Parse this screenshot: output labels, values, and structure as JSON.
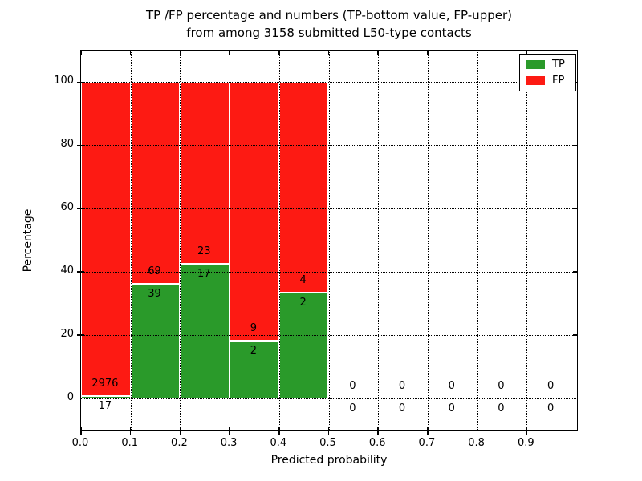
{
  "title": {
    "line1": "TP /FP percentage and numbers (TP-bottom value, FP-upper)",
    "line2": "from among 3158 submitted L50-type contacts"
  },
  "axes": {
    "xlabel": "Predicted probability",
    "ylabel": "Percentage",
    "xlim": [
      0.0,
      1.0
    ],
    "ylim": [
      -10,
      110
    ],
    "xtick_values": [
      0.0,
      0.1,
      0.2,
      0.3,
      0.4,
      0.5,
      0.6,
      0.7,
      0.8,
      0.9
    ],
    "xtick_labels": [
      "0.0",
      "0.1",
      "0.2",
      "0.3",
      "0.4",
      "0.5",
      "0.6",
      "0.7",
      "0.8",
      "0.9"
    ],
    "ytick_values": [
      0,
      20,
      40,
      60,
      80,
      100
    ],
    "ytick_labels": [
      "0",
      "20",
      "40",
      "60",
      "80",
      "100"
    ],
    "grid": "dotted, both directions, drawn over bars"
  },
  "legend": {
    "position": "upper right",
    "items": [
      {
        "label": "TP",
        "color": "#2a9a2a"
      },
      {
        "label": "FP",
        "color": "#fd1a13"
      }
    ]
  },
  "chart_data": {
    "type": "bar",
    "stacked": true,
    "normalized": "percent of bin total (TP bottom green, FP top red)",
    "title": "TP /FP percentage and numbers (TP-bottom value, FP-upper) from among 3158 submitted L50-type contacts",
    "xlabel": "Predicted probability",
    "ylabel": "Percentage",
    "total_contacts": 3158,
    "colors": {
      "tp": "#2a9a2a",
      "fp": "#fd1a13",
      "bar_edge": "#ffffff"
    },
    "bins": [
      {
        "range": [
          0.0,
          0.1
        ],
        "tp": 17,
        "fp": 2976,
        "tp_pct": 0.57,
        "fp_pct": 99.43
      },
      {
        "range": [
          0.1,
          0.2
        ],
        "tp": 39,
        "fp": 69,
        "tp_pct": 36.11,
        "fp_pct": 63.89
      },
      {
        "range": [
          0.2,
          0.3
        ],
        "tp": 17,
        "fp": 23,
        "tp_pct": 42.5,
        "fp_pct": 57.5
      },
      {
        "range": [
          0.3,
          0.4
        ],
        "tp": 2,
        "fp": 9,
        "tp_pct": 18.18,
        "fp_pct": 81.82
      },
      {
        "range": [
          0.4,
          0.5
        ],
        "tp": 2,
        "fp": 4,
        "tp_pct": 33.33,
        "fp_pct": 66.67
      },
      {
        "range": [
          0.5,
          0.6
        ],
        "tp": 0,
        "fp": 0,
        "tp_pct": 0,
        "fp_pct": 0
      },
      {
        "range": [
          0.6,
          0.7
        ],
        "tp": 0,
        "fp": 0,
        "tp_pct": 0,
        "fp_pct": 0
      },
      {
        "range": [
          0.7,
          0.8
        ],
        "tp": 0,
        "fp": 0,
        "tp_pct": 0,
        "fp_pct": 0
      },
      {
        "range": [
          0.8,
          0.9
        ],
        "tp": 0,
        "fp": 0,
        "tp_pct": 0,
        "fp_pct": 0
      },
      {
        "range": [
          0.9,
          1.0
        ],
        "tp": 0,
        "fp": 0,
        "tp_pct": 0,
        "fp_pct": 0
      }
    ]
  }
}
